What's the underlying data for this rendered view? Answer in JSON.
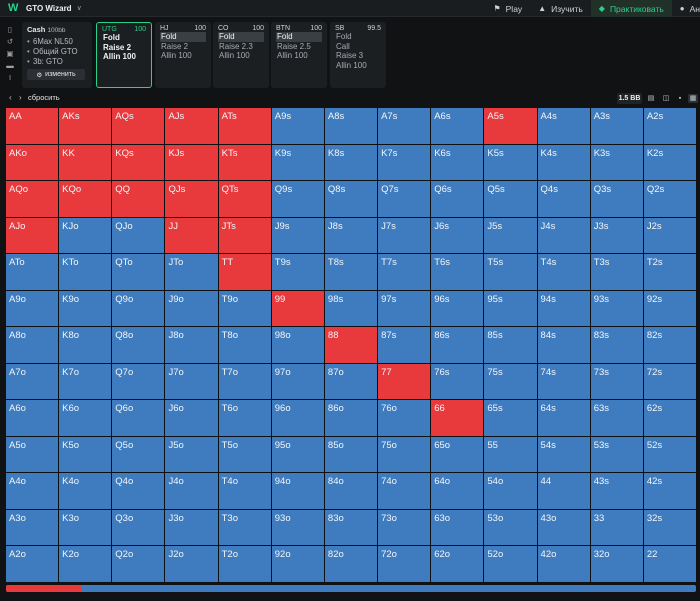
{
  "app": {
    "title": "GTO Wizard"
  },
  "topnav": {
    "play": "Play",
    "study": "Изучить",
    "practice": "Практиковать",
    "more": "Ан"
  },
  "info": {
    "title": "Cash",
    "stack": "100bb",
    "items": [
      "6Max NL50",
      "Общий GTO",
      "3b: GTO"
    ],
    "change_label": "изменить"
  },
  "positions": [
    {
      "name": "UTG",
      "stack": "100",
      "actions": [
        "Fold",
        "Raise 2",
        "Allin 100"
      ],
      "selected": -1,
      "active": true
    },
    {
      "name": "HJ",
      "stack": "100",
      "actions": [
        "Fold",
        "Raise 2",
        "Allin 100"
      ],
      "selected": 0,
      "active": false
    },
    {
      "name": "CO",
      "stack": "100",
      "actions": [
        "Fold",
        "Raise 2.3",
        "Allin 100"
      ],
      "selected": 0,
      "active": false
    },
    {
      "name": "BTN",
      "stack": "100",
      "actions": [
        "Fold",
        "Raise 2.5",
        "Allin 100"
      ],
      "selected": 0,
      "active": false
    },
    {
      "name": "SB",
      "stack": "99.5",
      "actions": [
        "Fold",
        "Call",
        "Raise 3",
        "Allin 100"
      ],
      "selected": -1,
      "active": false
    }
  ],
  "toolbar": {
    "reset_label": "сбросить",
    "bb_label": "1.5 BB"
  },
  "colors": {
    "raise": "#e8393d",
    "fold": "#3e7cbf",
    "accent": "#2bd08a"
  },
  "grid": {
    "ranks": [
      "A",
      "K",
      "Q",
      "J",
      "T",
      "9",
      "8",
      "7",
      "6",
      "5",
      "4",
      "3",
      "2"
    ],
    "raise_hands": [
      "AA",
      "AKs",
      "AQs",
      "AJs",
      "ATs",
      "A5s",
      "AKo",
      "KK",
      "KQs",
      "KJs",
      "KTs",
      "AQo",
      "KQo",
      "QQ",
      "QJs",
      "QTs",
      "AJo",
      "JJ",
      "JTs",
      "TT",
      "99",
      "88",
      "77",
      "66"
    ]
  },
  "progress": {
    "raise_fraction": 0.109
  }
}
